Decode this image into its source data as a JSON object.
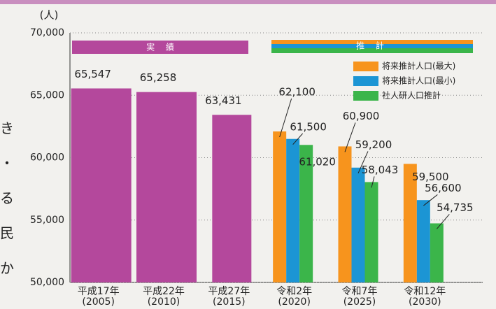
{
  "chart_data": {
    "type": "bar",
    "unit": "(人)",
    "banners": [
      "実 績",
      "推 計"
    ],
    "side_text": [
      "き",
      "・",
      "る",
      "民",
      "か"
    ],
    "categories": [
      "平成17年",
      "平成22年",
      "平成27年",
      "令和2年",
      "令和7年",
      "令和12年"
    ],
    "years": [
      "(2005)",
      "(2010)",
      "(2015)",
      "(2020)",
      "(2025)",
      "(2030)"
    ],
    "series": [
      {
        "color": "#b4489c",
        "values": [
          65547,
          65258,
          63431,
          null,
          null,
          null
        ],
        "value_labels": [
          "65,547",
          "65,258",
          "63,431",
          null,
          null,
          null
        ]
      },
      {
        "name": "将来推計人口(最大)",
        "color": "#f7941d",
        "values": [
          null,
          null,
          null,
          62100,
          60900,
          59500
        ],
        "value_labels": [
          null,
          null,
          null,
          "62,100",
          "60,900",
          "59,500"
        ]
      },
      {
        "name": "将来推計人口(最小)",
        "color": "#1c95d4",
        "values": [
          null,
          null,
          null,
          61500,
          59200,
          56600
        ],
        "value_labels": [
          null,
          null,
          null,
          "61,500",
          "59,200",
          "56,600"
        ]
      },
      {
        "name": "社人研人口推計",
        "color": "#3bb54a",
        "values": [
          null,
          null,
          null,
          61020,
          58043,
          54735
        ],
        "value_labels": [
          null,
          null,
          null,
          "61,020",
          "58,043",
          "54,735"
        ]
      }
    ],
    "ylim": [
      50000,
      70000
    ],
    "yticks": [
      {
        "value": 50000,
        "label": "50,000"
      },
      {
        "value": 55000,
        "label": "55,000"
      },
      {
        "value": 60000,
        "label": "60,000"
      },
      {
        "value": 65000,
        "label": "65,000"
      },
      {
        "value": 70000,
        "label": "70,000"
      }
    ],
    "grid": true
  }
}
